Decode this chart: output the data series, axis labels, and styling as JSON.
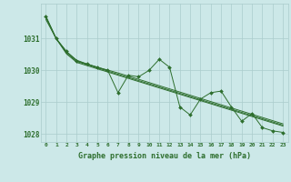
{
  "hours": [
    0,
    1,
    2,
    3,
    4,
    5,
    6,
    7,
    8,
    9,
    10,
    11,
    12,
    13,
    14,
    15,
    16,
    17,
    18,
    19,
    20,
    21,
    22,
    23
  ],
  "pressure_main": [
    1031.7,
    1031.0,
    1030.6,
    1030.3,
    1030.2,
    1030.1,
    1030.0,
    1029.3,
    1029.85,
    1029.8,
    1030.0,
    1030.35,
    1030.1,
    1028.85,
    1028.6,
    1029.1,
    1029.3,
    1029.35,
    1028.85,
    1028.4,
    1028.65,
    1028.2,
    1028.1,
    1028.05
  ],
  "pressure_line1": [
    1031.7,
    1031.0,
    1030.58,
    1030.32,
    1030.2,
    1030.1,
    1030.01,
    1029.92,
    1029.82,
    1029.72,
    1029.62,
    1029.52,
    1029.42,
    1029.32,
    1029.22,
    1029.12,
    1029.02,
    1028.92,
    1028.82,
    1028.72,
    1028.62,
    1028.52,
    1028.42,
    1028.32
  ],
  "pressure_line2": [
    1031.65,
    1031.0,
    1030.55,
    1030.28,
    1030.18,
    1030.08,
    1029.98,
    1029.88,
    1029.78,
    1029.68,
    1029.58,
    1029.48,
    1029.38,
    1029.28,
    1029.18,
    1029.08,
    1028.98,
    1028.88,
    1028.78,
    1028.68,
    1028.58,
    1028.48,
    1028.38,
    1028.28
  ],
  "pressure_line3": [
    1031.6,
    1031.0,
    1030.52,
    1030.25,
    1030.15,
    1030.05,
    1029.95,
    1029.85,
    1029.75,
    1029.65,
    1029.55,
    1029.45,
    1029.35,
    1029.25,
    1029.15,
    1029.05,
    1028.95,
    1028.85,
    1028.75,
    1028.65,
    1028.55,
    1028.45,
    1028.35,
    1028.25
  ],
  "bg_color": "#cce8e8",
  "grid_color": "#aacccc",
  "line_color": "#2d6e2d",
  "marker_color": "#2d6e2d",
  "title": "Graphe pression niveau de la mer (hPa)",
  "yticks": [
    1028,
    1029,
    1030,
    1031
  ],
  "ylim": [
    1027.75,
    1032.1
  ],
  "xlim": [
    -0.5,
    23.5
  ],
  "xtick_labels": [
    "0",
    "1",
    "2",
    "3",
    "4",
    "5",
    "6",
    "7",
    "8",
    "9",
    "10",
    "11",
    "12",
    "13",
    "14",
    "15",
    "16",
    "17",
    "18",
    "19",
    "20",
    "21",
    "22",
    "23"
  ]
}
